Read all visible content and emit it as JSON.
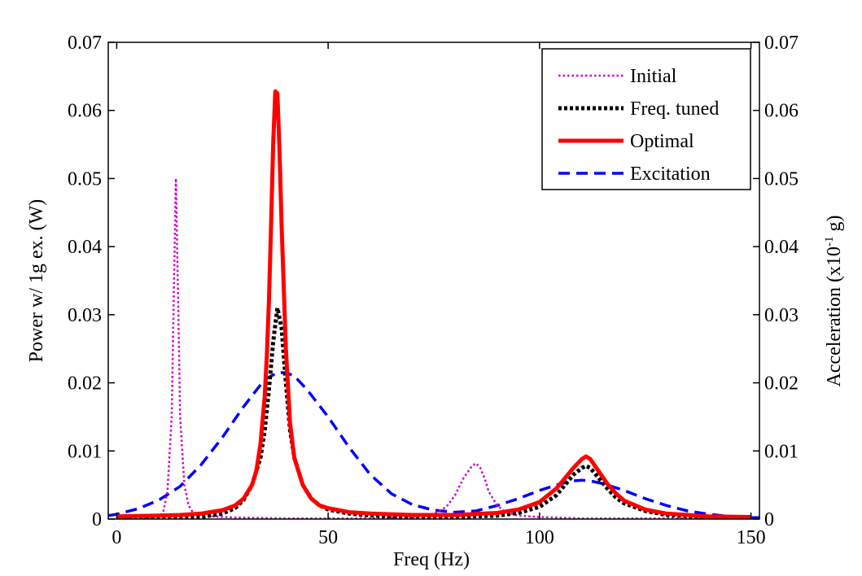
{
  "chart_data": {
    "type": "line",
    "xlabel": "Freq (Hz)",
    "ylabel": "Power w/ 1g ex. (W)",
    "y2label_main": "Acceleration  (x10",
    "y2label_sup": "-1",
    "y2label_end": " g)",
    "xlim": [
      -2,
      152
    ],
    "ylim": [
      0,
      0.07
    ],
    "y2lim": [
      0,
      0.07
    ],
    "xticks": [
      0,
      50,
      100,
      150
    ],
    "xtick_labels": [
      "0",
      "50",
      "100",
      "150"
    ],
    "yticks": [
      0,
      0.01,
      0.02,
      0.03,
      0.04,
      0.05,
      0.06,
      0.07
    ],
    "ytick_labels": [
      "0",
      "0.01",
      "0.02",
      "0.03",
      "0.04",
      "0.05",
      "0.06",
      "0.07"
    ],
    "y2tick_labels": [
      "0",
      "0.01",
      "0.02",
      "0.03",
      "0.04",
      "0.05",
      "0.06",
      "0.07"
    ],
    "grid": false,
    "legend_position": "top-right",
    "series": [
      {
        "name": "Initial",
        "color": "#cc00cc",
        "style": "dotted",
        "x": [
          0,
          10,
          11,
          12,
          13,
          13.5,
          14,
          14.5,
          15,
          16,
          17,
          18,
          20,
          25,
          30,
          40,
          50,
          60,
          70,
          75,
          78,
          80,
          82,
          84,
          85,
          86,
          87,
          88,
          90,
          92,
          95,
          100,
          110,
          120,
          130,
          140,
          150
        ],
        "y": [
          0,
          0.0003,
          0.001,
          0.004,
          0.015,
          0.033,
          0.05,
          0.033,
          0.015,
          0.005,
          0.002,
          0.001,
          0.0005,
          0.0003,
          0.0002,
          0.0001,
          0.0001,
          0.0001,
          0.0003,
          0.0008,
          0.0018,
          0.0035,
          0.006,
          0.0078,
          0.0082,
          0.0075,
          0.006,
          0.004,
          0.002,
          0.001,
          0.0005,
          0.0003,
          0.0001,
          0.0001,
          0.0001,
          0.0001,
          0.0001
        ]
      },
      {
        "name": "Freq. tuned",
        "color": "#000000",
        "style": "dashdot",
        "x": [
          0,
          10,
          20,
          25,
          28,
          30,
          32,
          34,
          35,
          36,
          37,
          38,
          39,
          40,
          41,
          42,
          44,
          46,
          48,
          50,
          55,
          60,
          70,
          80,
          90,
          95,
          100,
          104,
          106,
          108,
          110,
          111,
          112,
          114,
          116,
          118,
          120,
          125,
          130,
          140,
          150
        ],
        "y": [
          0,
          0.0001,
          0.0003,
          0.0008,
          0.0016,
          0.0028,
          0.005,
          0.009,
          0.013,
          0.019,
          0.026,
          0.031,
          0.028,
          0.02,
          0.013,
          0.009,
          0.005,
          0.003,
          0.002,
          0.0014,
          0.0008,
          0.0005,
          0.0003,
          0.0003,
          0.0005,
          0.0009,
          0.0018,
          0.0035,
          0.005,
          0.0065,
          0.0075,
          0.0078,
          0.0075,
          0.006,
          0.0045,
          0.0032,
          0.0023,
          0.0012,
          0.0006,
          0.0002,
          0.0001
        ]
      },
      {
        "name": "Optimal",
        "color": "#ff0000",
        "style": "solid",
        "x": [
          0,
          10,
          15,
          20,
          25,
          28,
          30,
          32,
          33,
          34,
          35,
          35.5,
          36,
          36.5,
          37,
          37.5,
          38,
          38.5,
          39,
          40,
          41,
          42,
          44,
          46,
          48,
          50,
          55,
          60,
          70,
          80,
          90,
          95,
          100,
          104,
          106,
          108,
          110,
          111,
          112,
          114,
          116,
          118,
          120,
          125,
          130,
          140,
          150
        ],
        "y": [
          0.0004,
          0.0005,
          0.0006,
          0.0008,
          0.0013,
          0.002,
          0.003,
          0.005,
          0.007,
          0.011,
          0.018,
          0.024,
          0.032,
          0.043,
          0.055,
          0.0628,
          0.0625,
          0.054,
          0.043,
          0.025,
          0.014,
          0.009,
          0.005,
          0.003,
          0.002,
          0.0016,
          0.001,
          0.0008,
          0.0006,
          0.0006,
          0.0009,
          0.0014,
          0.0025,
          0.0045,
          0.006,
          0.0075,
          0.0088,
          0.0092,
          0.0088,
          0.007,
          0.0052,
          0.0038,
          0.0027,
          0.0014,
          0.0008,
          0.0004,
          0.0003
        ]
      },
      {
        "name": "Excitation",
        "color": "#0000ff",
        "style": "dashed",
        "x": [
          -2,
          0,
          5,
          10,
          15,
          20,
          25,
          30,
          35,
          38,
          40,
          42,
          45,
          50,
          55,
          60,
          65,
          70,
          75,
          80,
          85,
          90,
          95,
          100,
          105,
          108,
          110,
          112,
          115,
          120,
          125,
          130,
          135,
          140,
          145,
          150,
          152
        ],
        "y": [
          0.0005,
          0.0007,
          0.0015,
          0.0028,
          0.0048,
          0.008,
          0.012,
          0.0165,
          0.0205,
          0.0215,
          0.0215,
          0.021,
          0.019,
          0.015,
          0.0105,
          0.0065,
          0.0037,
          0.0021,
          0.0013,
          0.001,
          0.0012,
          0.002,
          0.003,
          0.0042,
          0.0052,
          0.0056,
          0.0057,
          0.0056,
          0.0052,
          0.0042,
          0.003,
          0.002,
          0.0012,
          0.0007,
          0.0004,
          0.0002,
          0.0002
        ]
      }
    ]
  }
}
